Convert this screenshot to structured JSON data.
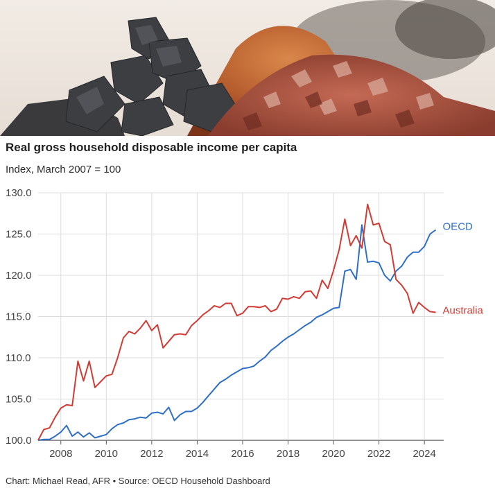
{
  "header": {
    "title": "Real gross household disposable income per capita",
    "subtitle": "Index, March 2007 = 100"
  },
  "footer": {
    "credit": "Chart: Michael Read, AFR • Source: OECD Household Dashboard"
  },
  "hero_image": {
    "description_icon": "minerals-photo"
  },
  "chart_data": {
    "type": "line",
    "ylim": [
      100,
      130
    ],
    "yticks": [
      "100.0",
      "105.0",
      "110.0",
      "115.0",
      "120.0",
      "125.0",
      "130.0"
    ],
    "xlim": [
      2007.0,
      2024.85
    ],
    "xticks": [
      "2008",
      "2010",
      "2012",
      "2014",
      "2016",
      "2018",
      "2020",
      "2022",
      "2024"
    ],
    "grid": true,
    "legend": "inline-right",
    "series": [
      {
        "name": "OECD",
        "color": "#2e6fc6",
        "x": [
          2007.0,
          2007.25,
          2007.5,
          2007.75,
          2008.0,
          2008.25,
          2008.5,
          2008.75,
          2009.0,
          2009.25,
          2009.5,
          2009.75,
          2010.0,
          2010.25,
          2010.5,
          2010.75,
          2011.0,
          2011.25,
          2011.5,
          2011.75,
          2012.0,
          2012.25,
          2012.5,
          2012.75,
          2013.0,
          2013.25,
          2013.5,
          2013.75,
          2014.0,
          2014.25,
          2014.5,
          2014.75,
          2015.0,
          2015.25,
          2015.5,
          2015.75,
          2016.0,
          2016.25,
          2016.5,
          2016.75,
          2017.0,
          2017.25,
          2017.5,
          2017.75,
          2018.0,
          2018.25,
          2018.5,
          2018.75,
          2019.0,
          2019.25,
          2019.5,
          2019.75,
          2020.0,
          2020.25,
          2020.5,
          2020.75,
          2021.0,
          2021.25,
          2021.5,
          2021.75,
          2022.0,
          2022.25,
          2022.5,
          2022.75,
          2023.0,
          2023.25,
          2023.5,
          2023.75,
          2024.0,
          2024.25,
          2024.5
        ],
        "values": [
          100.0,
          100.1,
          100.1,
          100.5,
          101.0,
          101.8,
          100.5,
          101.0,
          100.4,
          100.9,
          100.3,
          100.5,
          100.7,
          101.4,
          101.9,
          102.1,
          102.5,
          102.6,
          102.8,
          102.7,
          103.3,
          103.4,
          103.2,
          104.0,
          102.4,
          103.1,
          103.5,
          103.5,
          103.9,
          104.6,
          105.4,
          106.2,
          107.0,
          107.4,
          107.9,
          108.3,
          108.7,
          108.8,
          109.0,
          109.6,
          110.1,
          110.9,
          111.4,
          112.0,
          112.5,
          112.9,
          113.4,
          113.9,
          114.3,
          114.9,
          115.2,
          115.6,
          116.0,
          116.1,
          120.5,
          120.7,
          119.5,
          126.1,
          121.6,
          121.7,
          121.5,
          120.0,
          119.3,
          120.5,
          121.1,
          122.2,
          122.8,
          122.8,
          123.5,
          125.0,
          125.5
        ]
      },
      {
        "name": "Australia",
        "color": "#d23a33",
        "x": [
          2007.0,
          2007.25,
          2007.5,
          2007.75,
          2008.0,
          2008.25,
          2008.5,
          2008.75,
          2009.0,
          2009.25,
          2009.5,
          2009.75,
          2010.0,
          2010.25,
          2010.5,
          2010.75,
          2011.0,
          2011.25,
          2011.5,
          2011.75,
          2012.0,
          2012.25,
          2012.5,
          2012.75,
          2013.0,
          2013.25,
          2013.5,
          2013.75,
          2014.0,
          2014.25,
          2014.5,
          2014.75,
          2015.0,
          2015.25,
          2015.5,
          2015.75,
          2016.0,
          2016.25,
          2016.5,
          2016.75,
          2017.0,
          2017.25,
          2017.5,
          2017.75,
          2018.0,
          2018.25,
          2018.5,
          2018.75,
          2019.0,
          2019.25,
          2019.5,
          2019.75,
          2020.0,
          2020.25,
          2020.5,
          2020.75,
          2021.0,
          2021.25,
          2021.5,
          2021.75,
          2022.0,
          2022.25,
          2022.5,
          2022.75,
          2023.0,
          2023.25,
          2023.5,
          2023.75,
          2024.0,
          2024.25,
          2024.5
        ],
        "values": [
          100.0,
          101.3,
          101.5,
          102.8,
          103.9,
          104.3,
          104.2,
          109.6,
          107.2,
          109.6,
          106.4,
          107.1,
          107.8,
          108.0,
          110.0,
          112.4,
          113.2,
          112.9,
          113.6,
          114.5,
          113.3,
          114.0,
          111.2,
          112.0,
          112.8,
          112.9,
          112.8,
          113.9,
          114.5,
          115.2,
          115.7,
          116.3,
          116.1,
          116.6,
          116.6,
          115.1,
          115.4,
          116.2,
          116.2,
          116.1,
          116.3,
          115.6,
          115.9,
          117.2,
          117.1,
          117.4,
          117.2,
          118.0,
          118.1,
          117.2,
          119.4,
          118.4,
          120.6,
          123.1,
          126.8,
          123.6,
          124.8,
          123.3,
          128.6,
          126.1,
          126.3,
          124.1,
          123.7,
          119.5,
          118.8,
          117.8,
          115.4,
          116.7,
          116.1,
          115.6,
          115.5
        ]
      }
    ]
  }
}
